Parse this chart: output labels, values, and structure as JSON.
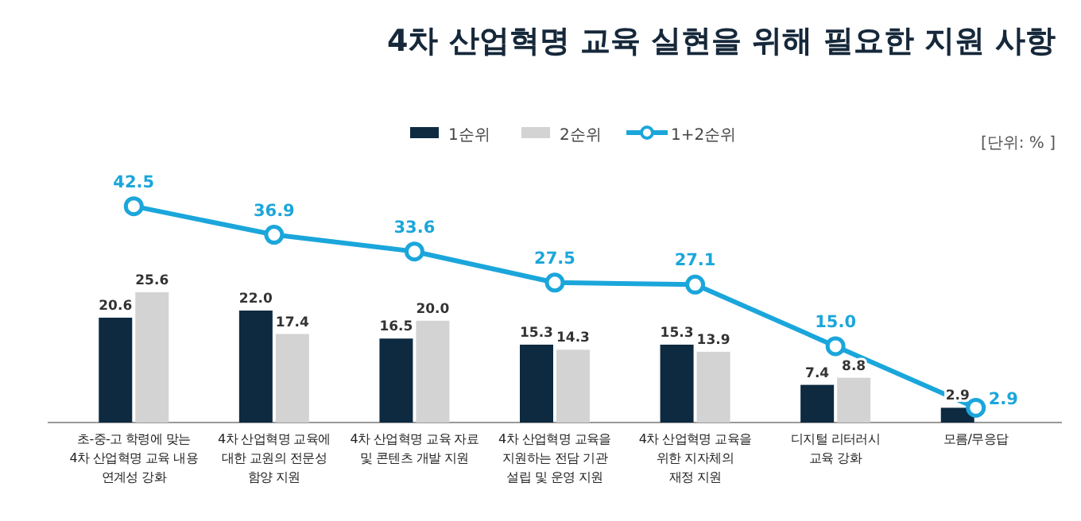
{
  "chart_data": {
    "type": "bar",
    "title": "4차 산업혁명 교육 실현을 위해 필요한 지원 사항",
    "categories": [
      "초-중-고 학령에 맞는\n4차 산업혁명 교육 내용\n연계성 강화",
      "4차 산업혁명 교육에\n대한 교원의 전문성\n함양 지원",
      "4차 산업혁명 교육 자료\n및 콘텐츠 개발 지원",
      "4차 산업혁명 교육을\n지원하는 전담 기관\n설립 및 운영 지원",
      "4차 산업혁명 교육을\n위한 지자체의\n재정 지원",
      "디지털 리터러시\n교육 강화",
      "모름/무응답"
    ],
    "series": [
      {
        "name": "1순위",
        "color": "#0d2a40",
        "values": [
          20.6,
          22.0,
          16.5,
          15.3,
          15.3,
          7.4,
          2.9
        ],
        "value_labels": [
          "20.6",
          "22.0",
          "16.5",
          "15.3",
          "15.3",
          "7.4",
          "2.9"
        ]
      },
      {
        "name": "2순위",
        "color": "#d3d3d3",
        "values": [
          25.6,
          17.4,
          20.0,
          14.3,
          13.9,
          8.8,
          0
        ],
        "value_labels": [
          "25.6",
          "17.4",
          "20.0",
          "14.3",
          "13.9",
          "8.8",
          null
        ]
      },
      {
        "name": "1+2순위",
        "type": "line",
        "color": "#1ba6db",
        "values": [
          42.5,
          36.9,
          33.6,
          27.5,
          27.1,
          15.0,
          2.9
        ],
        "value_labels": [
          "42.5",
          "36.9",
          "33.6",
          "27.5",
          "27.1",
          "15.0",
          "2.9"
        ]
      }
    ],
    "marker": "circle",
    "legend": "top",
    "annotations": [
      "[단위: % ]"
    ]
  }
}
